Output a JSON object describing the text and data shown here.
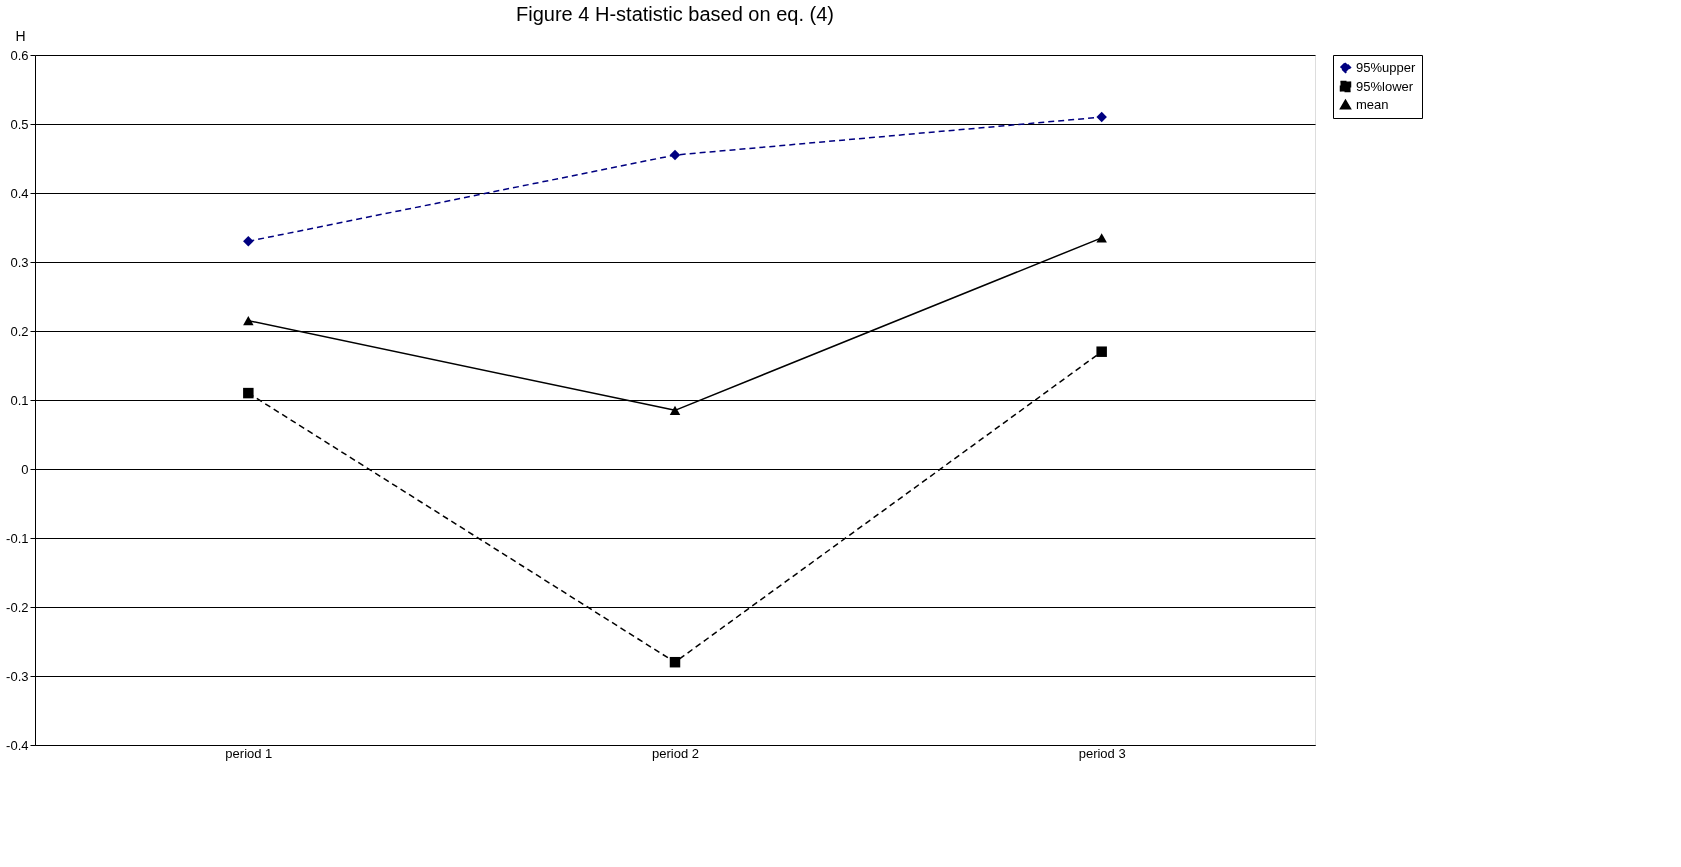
{
  "chart_data": {
    "type": "line",
    "title": "Figure 4  H-statistic based on eq. (4)",
    "ylabel": "H",
    "categories": [
      "period 1",
      "period 2",
      "period 3"
    ],
    "series": [
      {
        "name": "95%upper",
        "color": "#000080",
        "values": [
          0.33,
          0.455,
          0.51
        ],
        "marker": "diamond",
        "line_style": "dashed"
      },
      {
        "name": "95%lower",
        "color": "#000000",
        "values": [
          0.11,
          -0.28,
          0.17
        ],
        "marker": "square",
        "line_style": "dashed"
      },
      {
        "name": "mean",
        "color": "#000000",
        "values": [
          0.215,
          0.085,
          0.335
        ],
        "marker": "triangle",
        "line_style": "solid"
      }
    ],
    "ylim": [
      -0.4,
      0.6
    ],
    "yticks": [
      -0.4,
      -0.3,
      -0.2,
      -0.1,
      0,
      0.1,
      0.2,
      0.3,
      0.4,
      0.5,
      0.6
    ],
    "grid": "y",
    "legend": "right"
  }
}
